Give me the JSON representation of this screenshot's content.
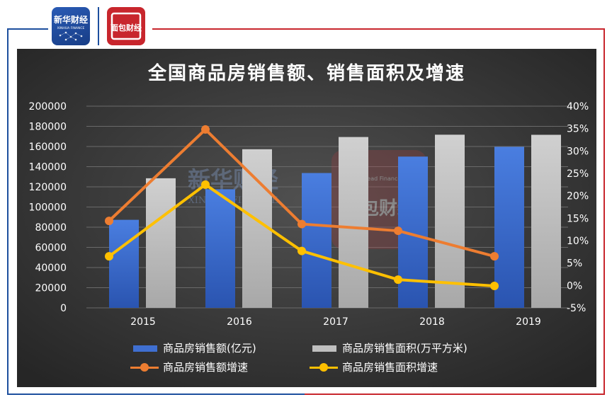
{
  "logos": {
    "xinhua_text": "新华财经",
    "xinhua_sub": "XINHUA FINANCE",
    "cmc_text": "面包财经"
  },
  "watermarks": {
    "xinhua_text": "新华财经",
    "xinhua_sub": "XINHUA FINANCE",
    "cmc_text": "面包财经",
    "cmc_sub": "Bread Finance"
  },
  "colors": {
    "frame_blue": "#1d4f9e",
    "frame_red": "#c8262d",
    "bar_sales_amount": "#3f6fd1",
    "bar_sales_area": "#bfbfbf",
    "line_amount_growth": "#ed7d31",
    "line_area_growth": "#ffc000"
  },
  "chart_data": {
    "type": "bar",
    "title": "全国商品房销售额、销售面积及增速",
    "categories": [
      "2015",
      "2016",
      "2017",
      "2018",
      "2019"
    ],
    "y_left": {
      "ylim": [
        0,
        200000
      ],
      "ticks": [
        "200000",
        "180000",
        "160000",
        "140000",
        "120000",
        "100000",
        "80000",
        "60000",
        "40000",
        "20000",
        "0"
      ]
    },
    "y_right": {
      "ylim": [
        -5,
        40
      ],
      "ticks": [
        "40%",
        "35%",
        "30%",
        "25%",
        "20%",
        "15%",
        "10%",
        "5%",
        "0%",
        "-5%"
      ]
    },
    "series": [
      {
        "name": "商品房销售额(亿元)",
        "kind": "bar",
        "axis": "left",
        "values": [
          87300,
          117600,
          133700,
          150000,
          159700
        ]
      },
      {
        "name": "商品房销售面积(万平方米)",
        "kind": "bar",
        "axis": "left",
        "values": [
          128500,
          157300,
          169400,
          171700,
          171600
        ]
      },
      {
        "name": "商品房销售额增速",
        "kind": "line",
        "axis": "right",
        "values": [
          14.4,
          34.8,
          13.7,
          12.2,
          6.5
        ]
      },
      {
        "name": "商品房销售面积增速",
        "kind": "line",
        "axis": "right",
        "values": [
          6.5,
          22.5,
          7.7,
          1.3,
          -0.1
        ]
      }
    ],
    "grid": true,
    "legend_position": "bottom"
  }
}
